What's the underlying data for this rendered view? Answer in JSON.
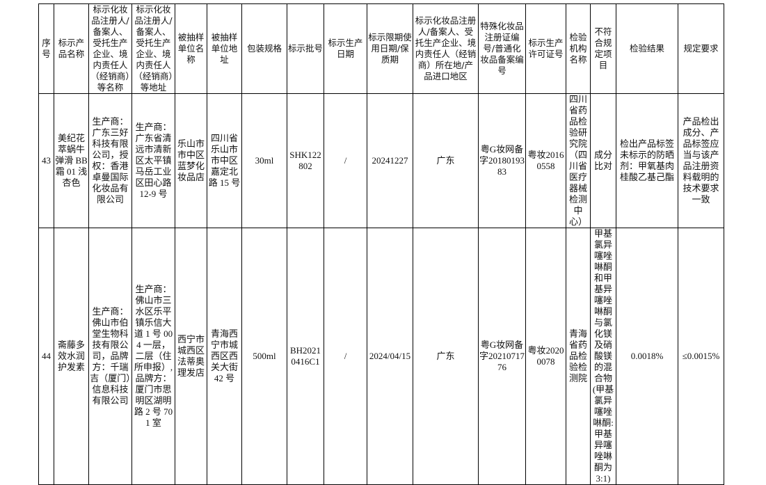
{
  "headers": [
    "序号",
    "标示产品名称",
    "标示化妆品注册人/备案人、受托生产企业、境内责任人（经销商）等名称",
    "标示化妆品注册人/备案人、受托生产企业、境内责任人（经销商）等地址",
    "被抽样单位名称",
    "被抽样单位地址",
    "包装规格",
    "标示批号",
    "标示生产日期",
    "标示限期使用日期/保质期",
    "标示化妆品注册人/备案人、受托生产企业、境内责任人（经销商）所在地/产品进口地区",
    "特殊化妆品注册证编号/普通化妆品备案编号",
    "标示生产许可证号",
    "检验机构名称",
    "不符合规定项目",
    "检验结果",
    "规定要求"
  ],
  "rows": [
    [
      "43",
      "美纪花萃蜗牛弹滑 BB 霜 01 浅杏色",
      "生产商：广东三好科技有限公司，授权：香港卓曼国际化妆品有限公司",
      "生产商：广东省清远市清新区太平镇马岳工业区田心路 12-9 号",
      "乐山市市中区蓝梦化妆品店",
      "四川省乐山市市中区嘉定北路 15 号",
      "30ml",
      "SHK122802",
      "/",
      "20241227",
      "广东",
      "粤G妆网备字2018019383",
      "粤妆20160558",
      "四川省药品检验研究院（四川省医疗器械检测中心）",
      "成分比对",
      "检出产品标签未标示的防晒剂：甲氧基肉桂酸乙基己酯",
      "产品检出成分、产品标签应当与该产品注册资料载明的技术要求一致"
    ],
    [
      "44",
      "斋藤多效水润护发素",
      "生产商：佛山市伯堂生物科技有限公司，品牌方：千瑞吉（厦门）信息科技有限公司",
      "生产商：佛山市三水区乐平镇乐信大道 1 号 004 一层，二层（住所申报）,品牌方：厦门市思明区湖明路 2 号 701 室",
      "西宁市城西区法蒂奥理发店",
      "青海西宁市城西区西关大街 42 号",
      "500ml",
      "BH20210416C1",
      "/",
      "2024/04/15",
      "广东",
      "粤G妆网备字2021071776",
      "粤妆20200078",
      "青海省药品检验检测院",
      "甲基氯异噻唑啉酮和甲基异噻唑啉酮与氯化镁及硝酸镁的混合物(甲基氯异噻唑啉酮:甲基异噻唑啉酮为3:1)",
      "0.0018%",
      "≤0.0015%"
    ]
  ]
}
